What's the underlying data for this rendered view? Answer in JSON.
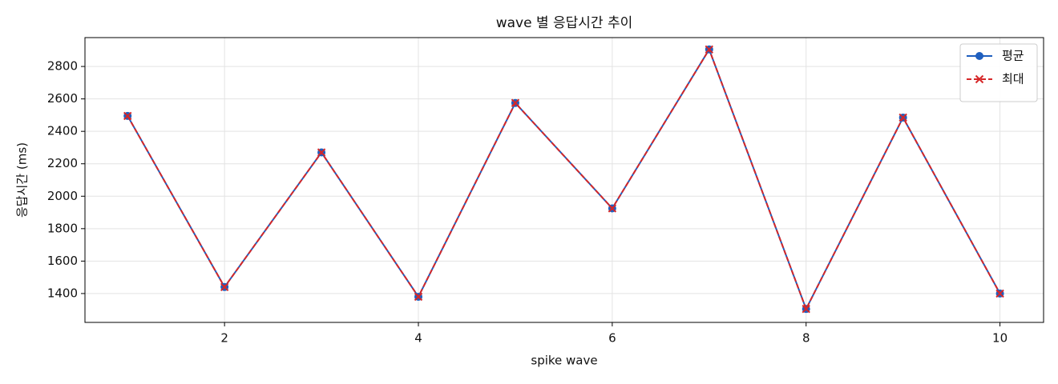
{
  "chart_data": {
    "type": "line",
    "title": "wave 별 응답시간 추이",
    "x_label": "spike wave",
    "y_label": "응답시간 (ms)",
    "x": [
      1,
      2,
      3,
      4,
      5,
      6,
      7,
      8,
      9,
      10
    ],
    "series": [
      {
        "name": "평균",
        "color": "#1f5fbf",
        "marker": "circle",
        "linestyle": "solid",
        "values": [
          2495,
          1440,
          2270,
          1380,
          2575,
          1925,
          2905,
          1305,
          2485,
          1400
        ]
      },
      {
        "name": "최대",
        "color": "#d62728",
        "marker": "x",
        "linestyle": "dashed",
        "values": [
          2495,
          1440,
          2270,
          1380,
          2575,
          1925,
          2905,
          1305,
          2485,
          1400
        ]
      }
    ],
    "xlim": [
      0.56,
      10.45
    ],
    "xticks": [
      2,
      4,
      6,
      8,
      10
    ],
    "ylim": [
      1222,
      2978
    ],
    "yticks": [
      1400,
      1600,
      1800,
      2000,
      2200,
      2400,
      2600,
      2800
    ],
    "grid": true,
    "legend": "upper-right"
  }
}
